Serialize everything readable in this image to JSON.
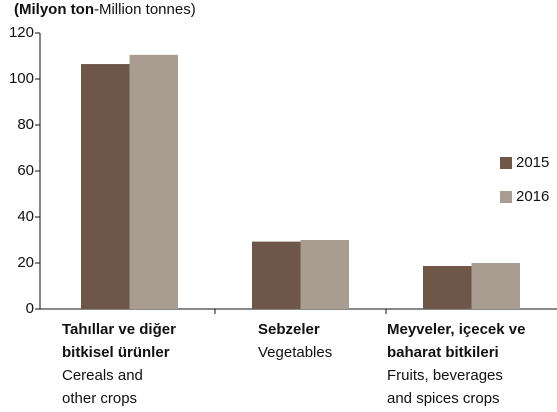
{
  "chart_data": {
    "type": "bar",
    "y_label": [
      "(Milyon ton",
      "-Million tonnes)"
    ],
    "categories": [
      {
        "bold": [
          "Tahıllar ve diğer",
          "bitkisel ürünler"
        ],
        "normal": [
          "Cereals and",
          "other crops"
        ]
      },
      {
        "bold": [
          "Sebzeler"
        ],
        "normal": [
          "Vegetables"
        ]
      },
      {
        "bold": [
          "Meyveler, içecek ve",
          "baharat bitkileri"
        ],
        "normal": [
          "Fruits, beverages",
          "and spices crops"
        ]
      }
    ],
    "series": [
      {
        "name": "2015",
        "color": "#6e5748",
        "values": [
          106.5,
          29.3,
          18.7
        ]
      },
      {
        "name": "2016",
        "color": "#a89d90",
        "values": [
          110.5,
          30.0,
          20.0
        ]
      }
    ],
    "ylim": [
      0,
      120
    ],
    "yticks": [
      0,
      20,
      40,
      60,
      80,
      100,
      120
    ],
    "grid": false,
    "legend": "right"
  }
}
